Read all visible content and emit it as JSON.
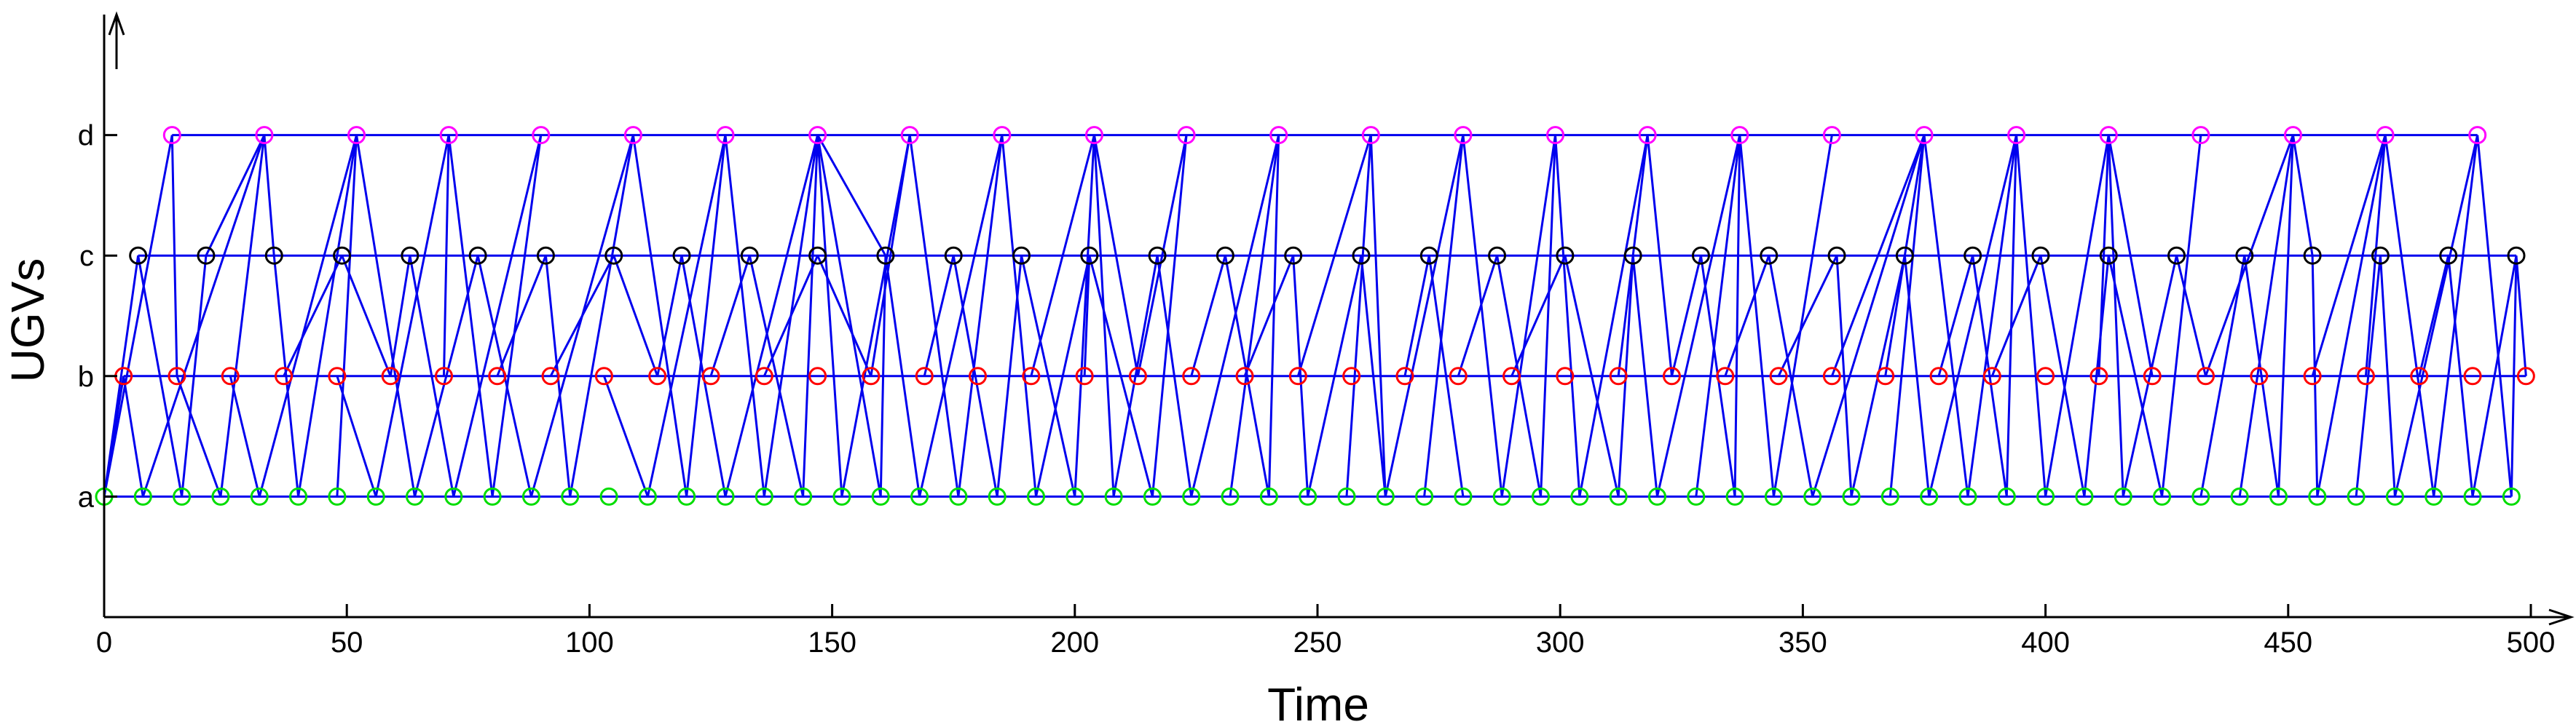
{
  "chart_data": {
    "type": "scatter",
    "xlabel": "Time",
    "ylabel": "UGVs",
    "xlim": [
      0,
      500
    ],
    "ylim": [
      0,
      5
    ],
    "xticks": [
      0,
      50,
      100,
      150,
      200,
      250,
      300,
      350,
      400,
      450,
      500
    ],
    "yticks": [
      {
        "label": "a",
        "value": 1
      },
      {
        "label": "b",
        "value": 2
      },
      {
        "label": "c",
        "value": 3
      },
      {
        "label": "d",
        "value": 4
      }
    ],
    "grid": false,
    "colors": {
      "a": "#00dd00",
      "b": "#ff0000",
      "c": "#000000",
      "d": "#ff00ff",
      "line": "#0000ee"
    },
    "series": [
      {
        "label": "a",
        "level": 1,
        "x": [
          0,
          8,
          16,
          24,
          32,
          40,
          48,
          56,
          64,
          72,
          80,
          88,
          96,
          104,
          112,
          120,
          128,
          136,
          144,
          152,
          160,
          168,
          176,
          184,
          192,
          200,
          208,
          216,
          224,
          232,
          240,
          248,
          256,
          264,
          272,
          280,
          288,
          296,
          304,
          312,
          320,
          328,
          336,
          344,
          352,
          360,
          368,
          376,
          384,
          392,
          400,
          408,
          416,
          424,
          432,
          440,
          448,
          456,
          464,
          472,
          480,
          488,
          496
        ]
      },
      {
        "label": "b",
        "level": 2,
        "x": [
          4,
          15,
          26,
          37,
          48,
          59,
          70,
          81,
          92,
          103,
          114,
          125,
          136,
          147,
          158,
          169,
          180,
          191,
          202,
          213,
          224,
          235,
          246,
          257,
          268,
          279,
          290,
          301,
          312,
          323,
          334,
          345,
          356,
          367,
          378,
          389,
          400,
          411,
          422,
          433,
          444,
          455,
          466,
          477,
          488,
          499
        ]
      },
      {
        "label": "c",
        "level": 3,
        "x": [
          7,
          21,
          35,
          49,
          63,
          77,
          91,
          105,
          119,
          133,
          147,
          161,
          175,
          189,
          203,
          217,
          231,
          245,
          259,
          273,
          287,
          301,
          315,
          329,
          343,
          357,
          371,
          385,
          399,
          413,
          427,
          441,
          455,
          469,
          483,
          497
        ]
      },
      {
        "label": "d",
        "level": 4,
        "x": [
          14,
          33,
          52,
          71,
          90,
          109,
          128,
          147,
          166,
          185,
          204,
          223,
          242,
          261,
          280,
          299,
          318,
          337,
          356,
          375,
          394,
          413,
          432,
          451,
          470,
          489
        ]
      }
    ],
    "segments": [
      [
        0,
        1,
        14,
        4
      ],
      [
        0,
        1,
        7,
        3
      ],
      [
        0,
        1,
        4,
        2
      ],
      [
        7,
        3,
        16,
        1
      ],
      [
        4,
        2,
        8,
        1
      ],
      [
        14,
        4,
        15,
        2
      ],
      [
        14,
        4,
        14,
        4
      ],
      [
        8,
        1,
        33,
        4
      ],
      [
        16,
        1,
        21,
        3
      ],
      [
        15,
        2,
        24,
        1
      ],
      [
        21,
        3,
        33,
        4
      ],
      [
        26,
        2,
        32,
        1
      ],
      [
        24,
        1,
        33,
        4
      ],
      [
        33,
        4,
        35,
        3
      ],
      [
        32,
        1,
        52,
        4
      ],
      [
        35,
        3,
        40,
        1
      ],
      [
        37,
        2,
        49,
        3
      ],
      [
        40,
        1,
        52,
        4
      ],
      [
        48,
        2,
        56,
        1
      ],
      [
        49,
        3,
        59,
        2
      ],
      [
        52,
        4,
        64,
        1
      ],
      [
        52,
        4,
        48,
        1
      ],
      [
        56,
        1,
        71,
        4
      ],
      [
        59,
        2,
        63,
        3
      ],
      [
        63,
        3,
        72,
        1
      ],
      [
        64,
        1,
        77,
        3
      ],
      [
        70,
        2,
        71,
        4
      ],
      [
        71,
        4,
        80,
        1
      ],
      [
        72,
        1,
        90,
        4
      ],
      [
        77,
        3,
        88,
        1
      ],
      [
        80,
        1,
        90,
        4
      ],
      [
        81,
        2,
        91,
        3
      ],
      [
        88,
        1,
        109,
        4
      ],
      [
        91,
        3,
        96,
        1
      ],
      [
        92,
        2,
        105,
        3
      ],
      [
        96,
        1,
        109,
        4
      ],
      [
        103,
        2,
        112,
        1
      ],
      [
        105,
        3,
        114,
        2
      ],
      [
        109,
        4,
        120,
        1
      ],
      [
        112,
        1,
        128,
        4
      ],
      [
        114,
        2,
        119,
        3
      ],
      [
        119,
        3,
        128,
        1
      ],
      [
        120,
        1,
        128,
        4
      ],
      [
        125,
        2,
        133,
        3
      ],
      [
        128,
        4,
        136,
        1
      ],
      [
        128,
        1,
        147,
        4
      ],
      [
        133,
        3,
        144,
        1
      ],
      [
        136,
        1,
        147,
        4
      ],
      [
        136,
        2,
        147,
        3
      ],
      [
        144,
        1,
        147,
        4
      ],
      [
        147,
        4,
        152,
        1
      ],
      [
        147,
        4,
        160,
        1
      ],
      [
        147,
        3,
        158,
        2
      ],
      [
        147,
        4,
        161,
        3
      ],
      [
        152,
        1,
        166,
        4
      ],
      [
        158,
        2,
        166,
        4
      ],
      [
        160,
        1,
        161,
        3
      ],
      [
        161,
        3,
        168,
        1
      ],
      [
        166,
        4,
        176,
        1
      ],
      [
        168,
        1,
        185,
        4
      ],
      [
        169,
        2,
        175,
        3
      ],
      [
        175,
        3,
        184,
        1
      ],
      [
        176,
        1,
        185,
        4
      ],
      [
        184,
        1,
        189,
        3
      ],
      [
        185,
        4,
        192,
        1
      ],
      [
        189,
        3,
        200,
        1
      ],
      [
        191,
        2,
        204,
        4
      ],
      [
        192,
        1,
        203,
        3
      ],
      [
        200,
        1,
        204,
        4
      ],
      [
        202,
        2,
        203,
        3
      ],
      [
        204,
        4,
        208,
        1
      ],
      [
        204,
        4,
        213,
        2
      ],
      [
        203,
        3,
        216,
        1
      ],
      [
        208,
        1,
        217,
        3
      ],
      [
        213,
        2,
        223,
        4
      ],
      [
        216,
        1,
        223,
        4
      ],
      [
        217,
        3,
        224,
        1
      ],
      [
        224,
        1,
        242,
        4
      ],
      [
        224,
        2,
        231,
        3
      ],
      [
        231,
        3,
        240,
        1
      ],
      [
        232,
        1,
        242,
        4
      ],
      [
        235,
        2,
        245,
        3
      ],
      [
        240,
        1,
        242,
        4
      ],
      [
        245,
        3,
        248,
        1
      ],
      [
        246,
        2,
        261,
        4
      ],
      [
        248,
        1,
        259,
        3
      ],
      [
        256,
        1,
        261,
        4
      ],
      [
        259,
        3,
        264,
        1
      ],
      [
        261,
        4,
        264,
        1
      ],
      [
        264,
        1,
        280,
        4
      ],
      [
        268,
        2,
        273,
        3
      ],
      [
        273,
        3,
        280,
        1
      ],
      [
        272,
        1,
        280,
        4
      ],
      [
        279,
        2,
        287,
        3
      ],
      [
        280,
        4,
        288,
        1
      ],
      [
        287,
        3,
        296,
        1
      ],
      [
        288,
        1,
        299,
        4
      ],
      [
        290,
        2,
        301,
        3
      ],
      [
        296,
        1,
        299,
        4
      ],
      [
        299,
        4,
        304,
        1
      ],
      [
        301,
        3,
        312,
        1
      ],
      [
        304,
        1,
        318,
        4
      ],
      [
        312,
        1,
        315,
        3
      ],
      [
        312,
        2,
        318,
        4
      ],
      [
        315,
        3,
        320,
        1
      ],
      [
        318,
        4,
        323,
        2
      ],
      [
        320,
        1,
        337,
        4
      ],
      [
        323,
        2,
        329,
        3
      ],
      [
        328,
        1,
        337,
        4
      ],
      [
        329,
        3,
        336,
        1
      ],
      [
        334,
        2,
        343,
        3
      ],
      [
        336,
        1,
        337,
        4
      ],
      [
        337,
        4,
        344,
        1
      ],
      [
        343,
        3,
        352,
        1
      ],
      [
        344,
        1,
        356,
        4
      ],
      [
        345,
        2,
        357,
        3
      ],
      [
        352,
        1,
        375,
        4
      ],
      [
        357,
        3,
        360,
        1
      ],
      [
        356,
        2,
        375,
        4
      ],
      [
        360,
        1,
        371,
        3
      ],
      [
        367,
        2,
        375,
        4
      ],
      [
        368,
        1,
        375,
        4
      ],
      [
        371,
        3,
        376,
        1
      ],
      [
        375,
        4,
        384,
        1
      ],
      [
        376,
        1,
        394,
        4
      ],
      [
        378,
        2,
        385,
        3
      ],
      [
        384,
        1,
        394,
        4
      ],
      [
        385,
        3,
        392,
        1
      ],
      [
        389,
        2,
        399,
        3
      ],
      [
        392,
        1,
        394,
        4
      ],
      [
        394,
        4,
        400,
        1
      ],
      [
        399,
        3,
        408,
        1
      ],
      [
        400,
        1,
        413,
        4
      ],
      [
        408,
        1,
        413,
        3
      ],
      [
        411,
        2,
        413,
        4
      ],
      [
        413,
        4,
        416,
        1
      ],
      [
        413,
        3,
        424,
        1
      ],
      [
        413,
        4,
        422,
        2
      ],
      [
        416,
        1,
        427,
        3
      ],
      [
        424,
        1,
        432,
        4
      ],
      [
        427,
        3,
        433,
        2
      ],
      [
        432,
        1,
        441,
        3
      ],
      [
        433,
        2,
        451,
        4
      ],
      [
        440,
        1,
        451,
        4
      ],
      [
        441,
        3,
        448,
        1
      ],
      [
        448,
        1,
        451,
        4
      ],
      [
        451,
        4,
        455,
        3
      ],
      [
        455,
        3,
        456,
        1
      ],
      [
        455,
        2,
        470,
        4
      ],
      [
        456,
        1,
        470,
        4
      ],
      [
        464,
        1,
        469,
        3
      ],
      [
        466,
        2,
        470,
        4
      ],
      [
        469,
        3,
        472,
        1
      ],
      [
        470,
        4,
        480,
        1
      ],
      [
        472,
        1,
        489,
        4
      ],
      [
        477,
        2,
        483,
        3
      ],
      [
        480,
        1,
        489,
        4
      ],
      [
        483,
        3,
        488,
        1
      ],
      [
        488,
        1,
        497,
        3
      ],
      [
        489,
        4,
        496,
        1
      ],
      [
        496,
        1,
        497,
        3
      ],
      [
        497,
        3,
        499,
        2
      ]
    ]
  }
}
